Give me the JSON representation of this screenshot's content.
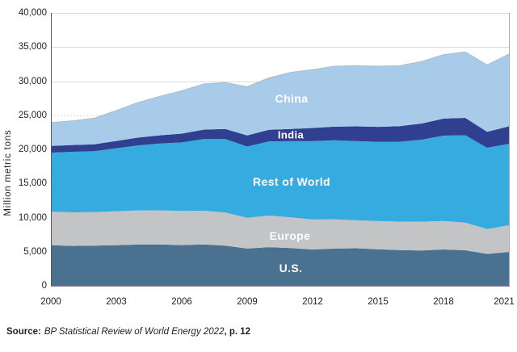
{
  "chart_data": {
    "type": "area",
    "stacked": true,
    "ylabel": "Million metric tons",
    "ylim": [
      0,
      40000
    ],
    "grid": "horizontal",
    "x": [
      2000,
      2001,
      2002,
      2003,
      2004,
      2005,
      2006,
      2007,
      2008,
      2009,
      2010,
      2011,
      2012,
      2013,
      2014,
      2015,
      2016,
      2017,
      2018,
      2019,
      2020,
      2021
    ],
    "x_ticks": [
      2000,
      2003,
      2006,
      2009,
      2012,
      2015,
      2018,
      2021
    ],
    "y_tick_labels": [
      "0",
      "5,000",
      "10,000",
      "15,000",
      "20,000",
      "25,000",
      "30,000",
      "35,000",
      "40,000"
    ],
    "series": [
      {
        "name": "U.S.",
        "color": "#4a7190",
        "values": [
          5960,
          5850,
          5890,
          5950,
          6050,
          6060,
          5970,
          6060,
          5880,
          5460,
          5670,
          5540,
          5310,
          5450,
          5500,
          5350,
          5230,
          5180,
          5330,
          5210,
          4670,
          4960
        ]
      },
      {
        "name": "Europe",
        "color": "#c3c4c5",
        "values": [
          4890,
          4920,
          4900,
          4980,
          5000,
          4990,
          5000,
          4950,
          4870,
          4520,
          4630,
          4480,
          4410,
          4300,
          4100,
          4150,
          4170,
          4220,
          4160,
          4040,
          3650,
          3920
        ]
      },
      {
        "name": "Rest of World",
        "color": "#36abe0",
        "values": [
          8670,
          8870,
          8940,
          9230,
          9530,
          9800,
          10050,
          10490,
          10750,
          10440,
          10870,
          11170,
          11480,
          11580,
          11620,
          11600,
          11730,
          12020,
          12520,
          12820,
          11920,
          11940
        ]
      },
      {
        "name": "India",
        "color": "#313f90",
        "values": [
          980,
          1000,
          1020,
          1070,
          1150,
          1210,
          1290,
          1390,
          1480,
          1620,
          1690,
          1790,
          1940,
          2000,
          2150,
          2200,
          2280,
          2370,
          2500,
          2550,
          2330,
          2550
        ]
      },
      {
        "name": "China",
        "color": "#a9cbea",
        "values": [
          3440,
          3560,
          3850,
          4470,
          5170,
          5740,
          6290,
          6710,
          6820,
          7160,
          7640,
          8320,
          8560,
          8870,
          8930,
          8900,
          8890,
          9110,
          9390,
          9680,
          9830,
          10630
        ]
      }
    ],
    "colors": {
      "gridline": "#d9d9d9",
      "axis_left": "#58595b",
      "border_right": "#aaacae",
      "axis_bottom": "#85878a",
      "top_edge": "#999999",
      "text": "#231f20"
    }
  },
  "source": {
    "prefix": "Source:",
    "title": "BP Statistical Review of World Energy 2022",
    "suffix": ", p. 12"
  }
}
